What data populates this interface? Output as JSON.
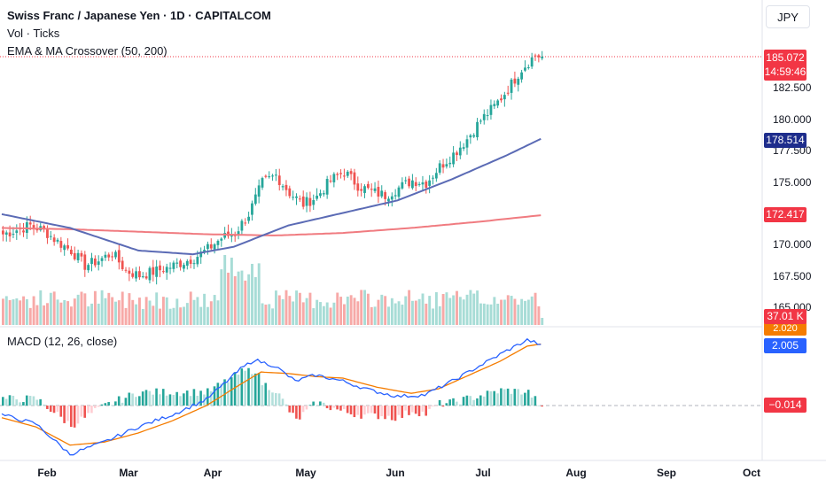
{
  "header": {
    "symbol_title": "Swiss Franc / Japanese Yen · 1D · CAPITALCOM",
    "vol_label": "Vol · Ticks",
    "ema_label": "EMA & MA Crossover (50, 200)",
    "currency_button": "JPY"
  },
  "macd_pane": {
    "label": "MACD (12, 26, close)"
  },
  "price_axis": {
    "ticks": [
      "182.500",
      "180.000",
      "177.500",
      "175.000",
      "170.000",
      "167.500",
      "165.000"
    ],
    "tick_values": [
      182.5,
      180.0,
      177.5,
      175.0,
      170.0,
      167.5,
      165.0
    ]
  },
  "tags": {
    "last_price": "185.072",
    "countdown": "14:59:46",
    "ema50": "178.514",
    "ma200": "172.417",
    "volume": "37.01 K",
    "macd_signal": "2.020",
    "macd_value": "2.005",
    "macd_hist": "−0.014"
  },
  "time_axis": {
    "months": [
      "Feb",
      "Mar",
      "Apr",
      "May",
      "Jun",
      "Jul",
      "Aug",
      "Sep",
      "Oct"
    ]
  },
  "colors": {
    "up": "#26a69a",
    "down": "#ef5350",
    "ema50": "#5b6bb5",
    "ma200": "#f07b80",
    "macd": "#2962ff",
    "signal": "#f57c00"
  },
  "chart_data": {
    "type": "candlestick",
    "close_series_anchors": [
      [
        0,
        170.9
      ],
      [
        8,
        171.6
      ],
      [
        12,
        171.2
      ],
      [
        16,
        170.3
      ],
      [
        20,
        169.6
      ],
      [
        24,
        168.4
      ],
      [
        28,
        168.8
      ],
      [
        32,
        169.4
      ],
      [
        36,
        168.0
      ],
      [
        40,
        167.6
      ],
      [
        44,
        167.9
      ],
      [
        48,
        168.2
      ],
      [
        52,
        168.6
      ],
      [
        56,
        169.0
      ],
      [
        60,
        169.7
      ],
      [
        64,
        170.6
      ],
      [
        68,
        171.0
      ],
      [
        72,
        172.5
      ],
      [
        76,
        175.0
      ],
      [
        80,
        175.6
      ],
      [
        84,
        174.2
      ],
      [
        88,
        173.3
      ],
      [
        92,
        173.9
      ],
      [
        96,
        175.2
      ],
      [
        100,
        175.9
      ],
      [
        104,
        174.8
      ],
      [
        108,
        174.3
      ],
      [
        112,
        174.0
      ],
      [
        116,
        174.6
      ],
      [
        120,
        175.2
      ],
      [
        124,
        175.0
      ],
      [
        128,
        176.3
      ],
      [
        132,
        177.3
      ],
      [
        136,
        178.5
      ],
      [
        140,
        180.0
      ],
      [
        144,
        181.1
      ],
      [
        148,
        182.5
      ],
      [
        152,
        184.1
      ],
      [
        156,
        185.2
      ],
      [
        158,
        185.07
      ]
    ],
    "ema50_anchors": [
      [
        0,
        172.5
      ],
      [
        20,
        171.4
      ],
      [
        40,
        169.6
      ],
      [
        56,
        169.3
      ],
      [
        68,
        169.9
      ],
      [
        84,
        171.6
      ],
      [
        100,
        172.6
      ],
      [
        116,
        173.6
      ],
      [
        132,
        175.3
      ],
      [
        148,
        177.2
      ],
      [
        158,
        178.514
      ]
    ],
    "ma200_anchors": [
      [
        0,
        171.4
      ],
      [
        20,
        171.3
      ],
      [
        40,
        171.1
      ],
      [
        60,
        170.9
      ],
      [
        80,
        170.8
      ],
      [
        100,
        171.0
      ],
      [
        120,
        171.4
      ],
      [
        140,
        171.9
      ],
      [
        158,
        172.417
      ]
    ],
    "macd_anchors": [
      [
        0,
        -0.3
      ],
      [
        10,
        -0.6
      ],
      [
        20,
        -1.6
      ],
      [
        30,
        -1.2
      ],
      [
        40,
        -0.7
      ],
      [
        50,
        -0.3
      ],
      [
        60,
        0.2
      ],
      [
        70,
        1.2
      ],
      [
        74,
        1.5
      ],
      [
        80,
        1.3
      ],
      [
        86,
        0.8
      ],
      [
        92,
        1.0
      ],
      [
        100,
        0.8
      ],
      [
        108,
        0.5
      ],
      [
        116,
        0.3
      ],
      [
        124,
        0.35
      ],
      [
        132,
        0.8
      ],
      [
        140,
        1.3
      ],
      [
        148,
        1.8
      ],
      [
        154,
        2.15
      ],
      [
        158,
        2.005
      ]
    ],
    "signal_anchors": [
      [
        0,
        -0.4
      ],
      [
        10,
        -0.7
      ],
      [
        20,
        -1.3
      ],
      [
        30,
        -1.2
      ],
      [
        40,
        -0.9
      ],
      [
        50,
        -0.5
      ],
      [
        60,
        0.0
      ],
      [
        70,
        0.7
      ],
      [
        76,
        1.1
      ],
      [
        84,
        1.05
      ],
      [
        92,
        0.95
      ],
      [
        100,
        0.9
      ],
      [
        110,
        0.6
      ],
      [
        120,
        0.4
      ],
      [
        128,
        0.55
      ],
      [
        136,
        0.95
      ],
      [
        146,
        1.45
      ],
      [
        154,
        1.95
      ],
      [
        158,
        2.02
      ]
    ],
    "bars": 159,
    "last_price": 185.072,
    "ema50_value": 178.514,
    "ma200_value": 172.417,
    "volume_last": "37.01 K",
    "macd_value": 2.005,
    "signal_value": 2.02,
    "histogram_value": -0.014
  }
}
